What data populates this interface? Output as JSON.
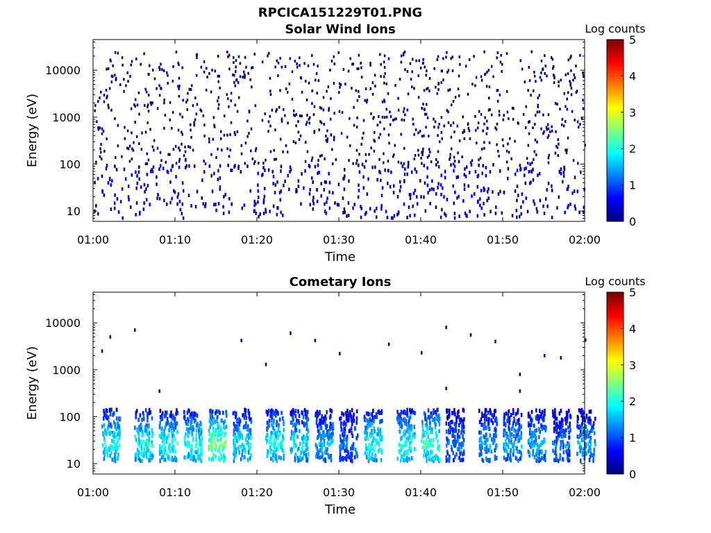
{
  "figure": {
    "title": "RPCICA151229T01.PNG",
    "colorbar_label": "Log counts"
  },
  "chart_data": [
    {
      "type": "heatmap",
      "title": "Solar Wind Ions",
      "xlabel": "Time",
      "ylabel": "Energy (eV)",
      "x_ticks": [
        "01:00",
        "01:10",
        "01:20",
        "01:30",
        "01:40",
        "01:50",
        "02:00"
      ],
      "x_range": [
        "01:00",
        "02:00"
      ],
      "y_scale": "log",
      "y_ticks": [
        10,
        100,
        1000,
        10000
      ],
      "y_range": [
        6,
        45000
      ],
      "colorbar": {
        "label": "Log counts",
        "range": [
          0,
          5
        ],
        "ticks": [
          0,
          1,
          2,
          3,
          4,
          5
        ],
        "colormap": "jet"
      },
      "description_of_content": "sparse single-count (log ~0) ion hits scattered across 10 eV - 20 keV, denser near 10-100 eV",
      "rows": [
        {
          "energy_range": [
            100,
            30000
          ],
          "log_counts": 0,
          "note": "sparse scattered hits"
        },
        {
          "energy_range": [
            6,
            100
          ],
          "log_counts": 0.2,
          "note": "clusters of hits at regular time intervals"
        }
      ]
    },
    {
      "type": "heatmap",
      "title": "Cometary Ions",
      "xlabel": "Time",
      "ylabel": "Energy (eV)",
      "x_ticks": [
        "01:00",
        "01:10",
        "01:20",
        "01:30",
        "01:40",
        "01:50",
        "02:00"
      ],
      "x_range": [
        "01:00",
        "02:00"
      ],
      "y_scale": "log",
      "y_ticks": [
        10,
        100,
        1000,
        10000
      ],
      "y_range": [
        6,
        45000
      ],
      "colorbar": {
        "label": "Log counts",
        "range": [
          0,
          5
        ],
        "ticks": [
          0,
          1,
          2,
          3,
          4,
          5
        ],
        "colormap": "jet"
      },
      "bursts": [
        {
          "time": "01:01",
          "peak_log_counts": 2.0
        },
        {
          "time": "01:05",
          "peak_log_counts": 2.0
        },
        {
          "time": "01:08",
          "peak_log_counts": 2.0
        },
        {
          "time": "01:11",
          "peak_log_counts": 2.0
        },
        {
          "time": "01:14",
          "peak_log_counts": 2.5
        },
        {
          "time": "01:17",
          "peak_log_counts": 1.8
        },
        {
          "time": "01:21",
          "peak_log_counts": 2.0
        },
        {
          "time": "01:24",
          "peak_log_counts": 1.8
        },
        {
          "time": "01:27",
          "peak_log_counts": 1.5
        },
        {
          "time": "01:30",
          "peak_log_counts": 1.2
        },
        {
          "time": "01:33",
          "peak_log_counts": 2.0
        },
        {
          "time": "01:37",
          "peak_log_counts": 2.0
        },
        {
          "time": "01:40",
          "peak_log_counts": 2.2
        },
        {
          "time": "01:43",
          "peak_log_counts": 1.2
        },
        {
          "time": "01:47",
          "peak_log_counts": 1.5
        },
        {
          "time": "01:50",
          "peak_log_counts": 1.5
        },
        {
          "time": "01:53",
          "peak_log_counts": 1.5
        },
        {
          "time": "01:56",
          "peak_log_counts": 1.2
        },
        {
          "time": "01:59",
          "peak_log_counts": 1.5
        }
      ],
      "burst_energy_range": [
        10,
        150
      ],
      "sparse_high_energy_hits": [
        {
          "time": "01:01",
          "energy": 2500
        },
        {
          "time": "01:02",
          "energy": 5000
        },
        {
          "time": "01:05",
          "energy": 7000
        },
        {
          "time": "01:08",
          "energy": 350
        },
        {
          "time": "01:18",
          "energy": 4200
        },
        {
          "time": "01:21",
          "energy": 1300
        },
        {
          "time": "01:24",
          "energy": 6000
        },
        {
          "time": "01:27",
          "energy": 4200
        },
        {
          "time": "01:30",
          "energy": 2200
        },
        {
          "time": "01:36",
          "energy": 3500
        },
        {
          "time": "01:40",
          "energy": 2300
        },
        {
          "time": "01:43",
          "energy": 8000
        },
        {
          "time": "01:43",
          "energy": 400
        },
        {
          "time": "01:46",
          "energy": 5500
        },
        {
          "time": "01:49",
          "energy": 4000
        },
        {
          "time": "01:52",
          "energy": 800
        },
        {
          "time": "01:52",
          "energy": 350
        },
        {
          "time": "01:55",
          "energy": 2000
        },
        {
          "time": "01:57",
          "energy": 1800
        },
        {
          "time": "02:00",
          "energy": 4300
        }
      ]
    }
  ]
}
